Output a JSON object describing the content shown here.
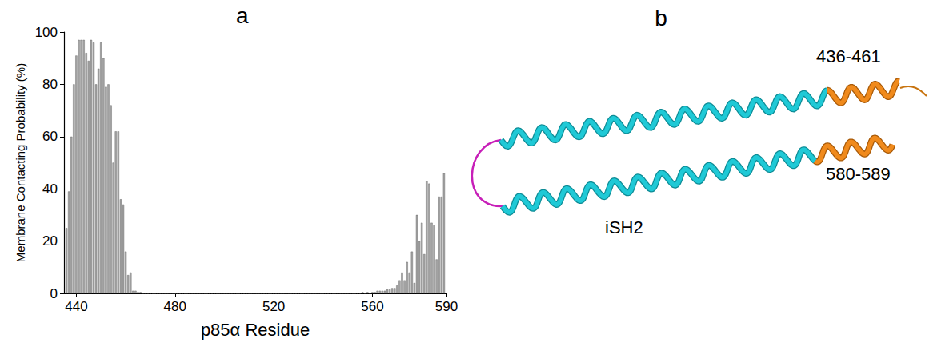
{
  "chart_data": {
    "type": "bar",
    "panel": "a",
    "x_label": "p85α Residue",
    "y_label": "Membrane Contacting Probability (%)",
    "x": [
      436,
      437,
      438,
      439,
      440,
      441,
      442,
      443,
      444,
      445,
      446,
      447,
      448,
      449,
      450,
      451,
      452,
      453,
      454,
      455,
      456,
      457,
      458,
      459,
      460,
      461,
      462,
      463,
      464,
      465,
      466,
      467,
      468,
      469,
      470,
      471,
      472,
      473,
      474,
      475,
      476,
      477,
      478,
      479,
      480,
      481,
      482,
      483,
      484,
      485,
      486,
      487,
      488,
      489,
      490,
      491,
      492,
      493,
      494,
      495,
      496,
      497,
      498,
      499,
      500,
      501,
      502,
      503,
      504,
      505,
      506,
      507,
      508,
      509,
      510,
      511,
      512,
      513,
      514,
      515,
      516,
      517,
      518,
      519,
      520,
      521,
      522,
      523,
      524,
      525,
      526,
      527,
      528,
      529,
      530,
      531,
      532,
      533,
      534,
      535,
      536,
      537,
      538,
      539,
      540,
      541,
      542,
      543,
      544,
      545,
      546,
      547,
      548,
      549,
      550,
      551,
      552,
      553,
      554,
      555,
      556,
      557,
      558,
      559,
      560,
      561,
      562,
      563,
      564,
      565,
      566,
      567,
      568,
      569,
      570,
      571,
      572,
      573,
      574,
      575,
      576,
      577,
      578,
      579,
      580,
      581,
      582,
      583,
      584,
      585,
      586,
      587,
      588,
      589
    ],
    "values": [
      25,
      39,
      60,
      80,
      91,
      97,
      97,
      97,
      92,
      89,
      97,
      96,
      80,
      86,
      96,
      90,
      79,
      80,
      72,
      50,
      62,
      62,
      36,
      34,
      16,
      7,
      8,
      1,
      1,
      0.5,
      0.5,
      0,
      0,
      0,
      0,
      0,
      0,
      0,
      0,
      0,
      0,
      0,
      0,
      0,
      0,
      0,
      0,
      0,
      0,
      0,
      0,
      0,
      0,
      0,
      0,
      0,
      0,
      0,
      0,
      0,
      0,
      0,
      0,
      0,
      0,
      0,
      0,
      0,
      0,
      0,
      0,
      0,
      0,
      0,
      0,
      0,
      0,
      0,
      0,
      0,
      0,
      0,
      0,
      0,
      0,
      0,
      0,
      0,
      0,
      0,
      0,
      0,
      0,
      0,
      0,
      0,
      0,
      0,
      0,
      0,
      0,
      0,
      0,
      0,
      0,
      0,
      0,
      0,
      0,
      0,
      0,
      0,
      0,
      0,
      0,
      0,
      0,
      0,
      0,
      0,
      0.5,
      0,
      0.5,
      0,
      0.5,
      0.5,
      1,
      1,
      1,
      1,
      1.5,
      1.5,
      2,
      2,
      3,
      5,
      8,
      5,
      12,
      8,
      16,
      4,
      30,
      20,
      27,
      15,
      43,
      42,
      27,
      26,
      13,
      37,
      37,
      46
    ],
    "color": "#a6a6a6",
    "xlim": [
      435,
      590
    ],
    "xticks": [
      440,
      480,
      520,
      560,
      590
    ],
    "ylim": [
      0,
      100
    ],
    "yticks": [
      0,
      20,
      40,
      60,
      80,
      100
    ],
    "grid": false
  },
  "structure": {
    "panel": "b",
    "labels": {
      "domain": "iSH2",
      "region_1": "436-461",
      "region_2": "580-589"
    }
  }
}
